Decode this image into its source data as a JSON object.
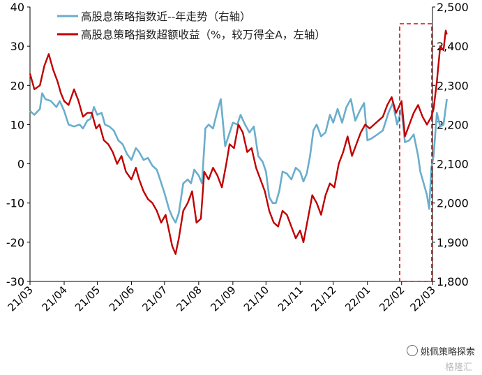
{
  "chart_data": {
    "type": "line",
    "x_ticks": [
      "21/03",
      "21/04",
      "21/05",
      "21/06",
      "21/07",
      "21/08",
      "21/09",
      "21/10",
      "21/11",
      "21/12",
      "22/01",
      "22/02",
      "22/03"
    ],
    "y_left": {
      "min": -30,
      "max": 40,
      "ticks": [
        -30,
        -20,
        -10,
        0,
        10,
        20,
        30,
        40
      ]
    },
    "y_right": {
      "min": 1800,
      "max": 2500,
      "tick_labels": [
        "1,800",
        "1,900",
        "2,000",
        "2,100",
        "2,200",
        "2,300",
        "2,400",
        "2,500"
      ]
    },
    "legend_position": "top-left",
    "grid": false,
    "series": [
      {
        "name": "高股息策略指数近--年走势（右轴）",
        "axis": "right",
        "color": "#6aaecb",
        "points": [
          [
            "21/03/01",
            2235
          ],
          [
            "21/03/05",
            2225
          ],
          [
            "21/03/10",
            2240
          ],
          [
            "21/03/12",
            2280
          ],
          [
            "21/03/15",
            2265
          ],
          [
            "21/03/20",
            2260
          ],
          [
            "21/03/25",
            2245
          ],
          [
            "21/03/28",
            2260
          ],
          [
            "21/04/01",
            2235
          ],
          [
            "21/04/05",
            2200
          ],
          [
            "21/04/10",
            2195
          ],
          [
            "21/04/15",
            2200
          ],
          [
            "21/04/18",
            2190
          ],
          [
            "21/04/22",
            2210
          ],
          [
            "21/04/25",
            2215
          ],
          [
            "21/04/28",
            2245
          ],
          [
            "21/05/01",
            2225
          ],
          [
            "21/05/05",
            2230
          ],
          [
            "21/05/08",
            2200
          ],
          [
            "21/05/12",
            2195
          ],
          [
            "21/05/16",
            2185
          ],
          [
            "21/05/20",
            2160
          ],
          [
            "21/05/24",
            2150
          ],
          [
            "21/05/28",
            2125
          ],
          [
            "21/06/01",
            2110
          ],
          [
            "21/06/05",
            2140
          ],
          [
            "21/06/08",
            2130
          ],
          [
            "21/06/12",
            2110
          ],
          [
            "21/06/16",
            2115
          ],
          [
            "21/06/20",
            2095
          ],
          [
            "21/06/24",
            2085
          ],
          [
            "21/06/27",
            2060
          ],
          [
            "21/07/01",
            2025
          ],
          [
            "21/07/05",
            1985
          ],
          [
            "21/07/08",
            1965
          ],
          [
            "21/07/11",
            1950
          ],
          [
            "21/07/14",
            1975
          ],
          [
            "21/07/18",
            2050
          ],
          [
            "21/07/22",
            2060
          ],
          [
            "21/07/25",
            2050
          ],
          [
            "21/07/28",
            2085
          ],
          [
            "21/08/01",
            2070
          ],
          [
            "21/08/04",
            2050
          ],
          [
            "21/08/07",
            2190
          ],
          [
            "21/08/10",
            2200
          ],
          [
            "21/08/14",
            2190
          ],
          [
            "21/08/18",
            2235
          ],
          [
            "21/08/21",
            2265
          ],
          [
            "21/08/25",
            2145
          ],
          [
            "21/08/28",
            2170
          ],
          [
            "21/09/01",
            2205
          ],
          [
            "21/09/05",
            2200
          ],
          [
            "21/09/08",
            2225
          ],
          [
            "21/09/12",
            2200
          ],
          [
            "21/09/16",
            2180
          ],
          [
            "21/09/20",
            2195
          ],
          [
            "21/09/24",
            2120
          ],
          [
            "21/09/28",
            2105
          ],
          [
            "21/10/01",
            2080
          ],
          [
            "21/10/04",
            2015
          ],
          [
            "21/10/07",
            2000
          ],
          [
            "21/10/10",
            2000
          ],
          [
            "21/10/13",
            2030
          ],
          [
            "21/10/16",
            2080
          ],
          [
            "21/10/20",
            2075
          ],
          [
            "21/10/24",
            2060
          ],
          [
            "21/10/28",
            2090
          ],
          [
            "21/11/01",
            2080
          ],
          [
            "21/11/04",
            2055
          ],
          [
            "21/11/07",
            2075
          ],
          [
            "21/11/10",
            2120
          ],
          [
            "21/11/13",
            2185
          ],
          [
            "21/11/16",
            2200
          ],
          [
            "21/11/20",
            2170
          ],
          [
            "21/11/24",
            2180
          ],
          [
            "21/11/28",
            2225
          ],
          [
            "21/12/01",
            2205
          ],
          [
            "21/12/05",
            2240
          ],
          [
            "21/12/09",
            2205
          ],
          [
            "21/12/13",
            2245
          ],
          [
            "21/12/17",
            2265
          ],
          [
            "21/12/21",
            2210
          ],
          [
            "21/12/25",
            2235
          ],
          [
            "21/12/29",
            2255
          ],
          [
            "22/01/01",
            2160
          ],
          [
            "22/01/05",
            2165
          ],
          [
            "22/01/10",
            2175
          ],
          [
            "22/01/15",
            2185
          ],
          [
            "22/01/20",
            2230
          ],
          [
            "22/01/24",
            2255
          ],
          [
            "22/01/28",
            2200
          ],
          [
            "22/02/01",
            2240
          ],
          [
            "22/02/04",
            2155
          ],
          [
            "22/02/08",
            2160
          ],
          [
            "22/02/12",
            2175
          ],
          [
            "22/02/16",
            2120
          ],
          [
            "22/02/18",
            2080
          ],
          [
            "22/02/21",
            2050
          ],
          [
            "22/02/24",
            2020
          ],
          [
            "22/02/26",
            1985
          ],
          [
            "22/02/28",
            2090
          ],
          [
            "22/03/02",
            2120
          ],
          [
            "22/03/05",
            2230
          ],
          [
            "22/03/08",
            2195
          ],
          [
            "22/03/11",
            2200
          ],
          [
            "22/03/14",
            2265
          ]
        ]
      },
      {
        "name": "高股息策略指数超额收益（%，较万得全A，左轴）",
        "axis": "left",
        "color": "#c00000",
        "points": [
          [
            "21/03/01",
            23
          ],
          [
            "21/03/05",
            19
          ],
          [
            "21/03/10",
            20
          ],
          [
            "21/03/14",
            25
          ],
          [
            "21/03/18",
            28
          ],
          [
            "21/03/22",
            24
          ],
          [
            "21/03/26",
            21
          ],
          [
            "21/03/29",
            18
          ],
          [
            "21/04/01",
            16
          ],
          [
            "21/04/05",
            15
          ],
          [
            "21/04/10",
            19
          ],
          [
            "21/04/14",
            16
          ],
          [
            "21/04/18",
            12
          ],
          [
            "21/04/22",
            13
          ],
          [
            "21/04/26",
            13
          ],
          [
            "21/04/30",
            9
          ],
          [
            "21/05/03",
            10
          ],
          [
            "21/05/07",
            6
          ],
          [
            "21/05/11",
            5
          ],
          [
            "21/05/15",
            3
          ],
          [
            "21/05/19",
            0
          ],
          [
            "21/05/23",
            2
          ],
          [
            "21/05/27",
            -2
          ],
          [
            "21/06/01",
            -4
          ],
          [
            "21/06/05",
            -1
          ],
          [
            "21/06/08",
            -4
          ],
          [
            "21/06/12",
            -7
          ],
          [
            "21/06/16",
            -9
          ],
          [
            "21/06/20",
            -10
          ],
          [
            "21/06/24",
            -12
          ],
          [
            "21/06/28",
            -15
          ],
          [
            "21/07/02",
            -13
          ],
          [
            "21/07/05",
            -17
          ],
          [
            "21/07/08",
            -21
          ],
          [
            "21/07/11",
            -23
          ],
          [
            "21/07/14",
            -19
          ],
          [
            "21/07/18",
            -12
          ],
          [
            "21/07/22",
            -10
          ],
          [
            "21/07/26",
            -7
          ],
          [
            "21/07/30",
            -15
          ],
          [
            "21/08/03",
            -14
          ],
          [
            "21/08/06",
            -2
          ],
          [
            "21/08/10",
            -4
          ],
          [
            "21/08/14",
            -1
          ],
          [
            "21/08/18",
            -3
          ],
          [
            "21/08/22",
            -6
          ],
          [
            "21/08/26",
            0
          ],
          [
            "21/08/29",
            5
          ],
          [
            "21/09/02",
            4
          ],
          [
            "21/09/06",
            10
          ],
          [
            "21/09/10",
            8
          ],
          [
            "21/09/14",
            3
          ],
          [
            "21/09/18",
            4
          ],
          [
            "21/09/22",
            -1
          ],
          [
            "21/09/26",
            -4
          ],
          [
            "21/09/30",
            -7
          ],
          [
            "21/10/04",
            -12
          ],
          [
            "21/10/08",
            -15
          ],
          [
            "21/10/12",
            -16
          ],
          [
            "21/10/16",
            -12
          ],
          [
            "21/10/20",
            -13
          ],
          [
            "21/10/24",
            -16
          ],
          [
            "21/10/28",
            -19
          ],
          [
            "21/11/01",
            -17
          ],
          [
            "21/11/04",
            -20
          ],
          [
            "21/11/08",
            -14
          ],
          [
            "21/11/12",
            -8
          ],
          [
            "21/11/16",
            -10
          ],
          [
            "21/11/20",
            -13
          ],
          [
            "21/11/24",
            -8
          ],
          [
            "21/11/28",
            -5
          ],
          [
            "21/12/02",
            -6
          ],
          [
            "21/12/06",
            0
          ],
          [
            "21/12/10",
            3
          ],
          [
            "21/12/14",
            7
          ],
          [
            "21/12/18",
            2
          ],
          [
            "21/12/22",
            5
          ],
          [
            "21/12/26",
            8
          ],
          [
            "21/12/30",
            10
          ],
          [
            "22/01/03",
            9
          ],
          [
            "22/01/07",
            10
          ],
          [
            "22/01/11",
            11
          ],
          [
            "22/01/15",
            12
          ],
          [
            "22/01/19",
            15
          ],
          [
            "22/01/23",
            17
          ],
          [
            "22/01/27",
            13
          ],
          [
            "22/02/01",
            16
          ],
          [
            "22/02/04",
            7
          ],
          [
            "22/02/08",
            10
          ],
          [
            "22/02/12",
            13
          ],
          [
            "22/02/16",
            15
          ],
          [
            "22/02/20",
            12
          ],
          [
            "22/02/24",
            10
          ],
          [
            "22/02/28",
            12
          ],
          [
            "22/03/02",
            14
          ],
          [
            "22/03/05",
            21
          ],
          [
            "22/03/08",
            30
          ],
          [
            "22/03/11",
            29
          ],
          [
            "22/03/13",
            34
          ],
          [
            "22/03/14",
            33
          ]
        ]
      }
    ]
  },
  "watermark": {
    "text": "姚佩策略探索",
    "sub": "格隆汇"
  }
}
